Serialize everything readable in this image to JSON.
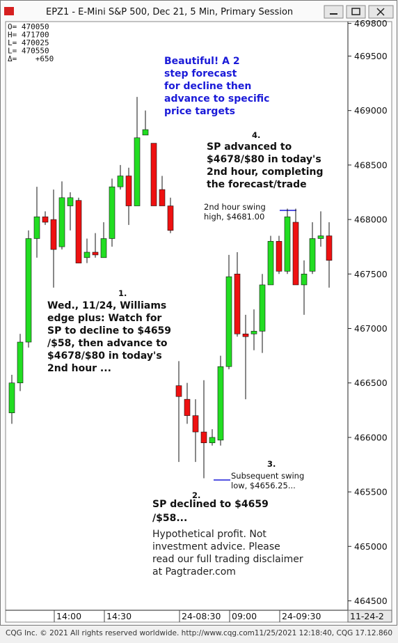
{
  "chart_data": {
    "type": "candlestick",
    "title": "EPZ1 - E-Mini S&P 500, Dec 21, 5 Min, Primary Session",
    "info_box": [
      "O= 470050",
      "H= 471700",
      "L= 470025",
      "L= 470550",
      "Δ=    +650"
    ],
    "categories": [
      null,
      null,
      null,
      null,
      null,
      "14:00",
      null,
      null,
      null,
      null,
      null,
      "14:30",
      null,
      null,
      null,
      null,
      null,
      null,
      null,
      null,
      "24-08:30",
      null,
      null,
      null,
      null,
      null,
      "09:00",
      null,
      null,
      null,
      null,
      null,
      "24-09:30",
      null,
      null,
      null,
      null,
      null,
      null
    ],
    "x_corner_label": "11-24-2",
    "open": [
      466225,
      466500,
      466875,
      467825,
      468025,
      468000,
      467750,
      468125,
      468175,
      467650,
      467700,
      467650,
      467825,
      468300,
      468400,
      468125,
      468775,
      468700,
      468275,
      468125,
      466475,
      466350,
      466200,
      466050,
      465950,
      465975,
      466650,
      467500,
      466950,
      466950,
      466975,
      467400,
      467800,
      467525,
      467975,
      467400,
      467525,
      467825,
      467850
    ],
    "high": [
      466575,
      466950,
      467900,
      468300,
      468075,
      468275,
      468350,
      468250,
      468200,
      467825,
      467875,
      467975,
      468375,
      468500,
      468475,
      469125,
      469000,
      468700,
      468400,
      468200,
      466700,
      466500,
      466350,
      466525,
      466075,
      466750,
      467675,
      467700,
      467125,
      467175,
      467500,
      467850,
      467850,
      468100,
      468100,
      467625,
      467975,
      468075,
      467975
    ],
    "low": [
      466125,
      466425,
      466825,
      467650,
      467950,
      467375,
      467725,
      467900,
      467600,
      467600,
      467650,
      467650,
      467750,
      468275,
      467950,
      468125,
      468775,
      468125,
      468125,
      467875,
      465775,
      466125,
      465775,
      465625,
      465925,
      465925,
      466625,
      466925,
      466350,
      466800,
      466775,
      467400,
      467500,
      467500,
      467400,
      467125,
      467500,
      467750,
      467375
    ],
    "close": [
      466500,
      466875,
      467825,
      468025,
      467975,
      467725,
      468200,
      468200,
      467600,
      467700,
      467675,
      467825,
      468300,
      468400,
      468125,
      468750,
      468825,
      468125,
      468125,
      467900,
      466375,
      466200,
      466050,
      465950,
      466000,
      466650,
      467475,
      466950,
      466925,
      466975,
      467400,
      467800,
      467525,
      468025,
      467400,
      467500,
      467825,
      467850,
      467625
    ],
    "up_color": "#22dd22",
    "down_color": "#ee1111",
    "ylim": [
      464420,
      469810
    ],
    "yticks": [
      464500,
      465000,
      465500,
      466000,
      466500,
      467000,
      467500,
      468000,
      468500,
      469000,
      469500,
      469800
    ],
    "annotations": [
      {
        "lines": [
          "Beautiful! A 2",
          "step forecast",
          "for decline then",
          "advance to specific",
          "price targets"
        ]
      },
      {
        "number": "4.",
        "lines": [
          "SP advanced to",
          "$4678/$80 in today's",
          "2nd hour, completing",
          "the forecast/trade"
        ]
      },
      {
        "lines": [
          "2nd hour swing",
          "high, $4681.00"
        ]
      },
      {
        "number": "1.",
        "lines": [
          "Wed., 11/24, Williams",
          "edge plus: Watch for",
          "SP to decline to $4659",
          "/$58, then advance to",
          "$4678/$80 in today's",
          "2nd hour ..."
        ]
      },
      {
        "number": "3.",
        "lines": [
          "Subsequent swing",
          "low, $4656.25..."
        ]
      },
      {
        "number": "2.",
        "lines": [
          "SP declined to $4659",
          "/$58..."
        ]
      },
      {
        "lines": [
          "Hypothetical profit. Not",
          "investment advice. Please",
          "read our full trading disclaimer",
          "at Pagtrader.com"
        ]
      }
    ]
  },
  "footer": {
    "left": "CQG Inc. © 2021 All rights reserved worldwide. http://www.cqg.com",
    "right": "11/25/2021 12:18:40, CQG 17.12.860"
  }
}
